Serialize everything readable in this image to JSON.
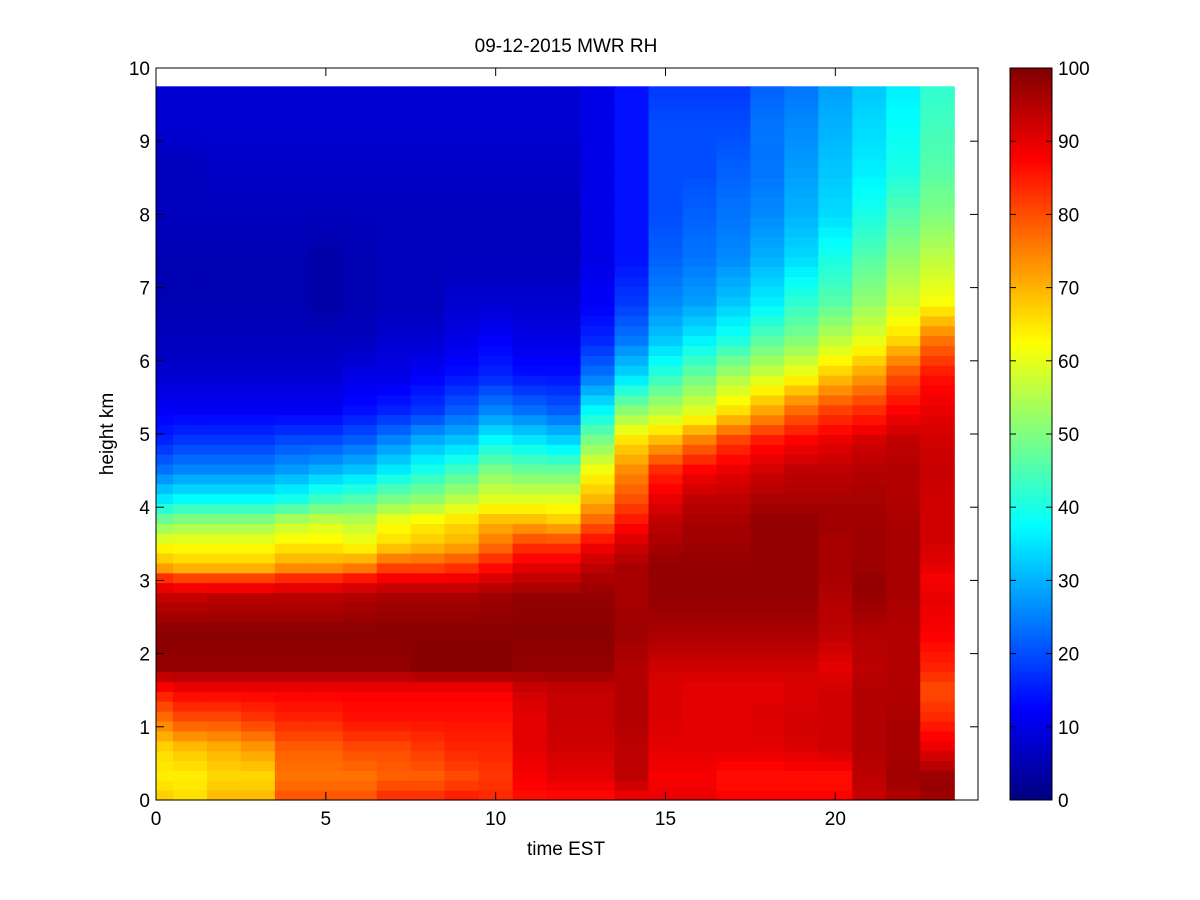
{
  "chart_data": {
    "type": "heatmap",
    "title": "09-12-2015 MWR RH",
    "xlabel": "time EST",
    "ylabel": "height km",
    "xlim": [
      0,
      24.2
    ],
    "ylim": [
      0,
      10
    ],
    "xticks": [
      0,
      5,
      10,
      15,
      20
    ],
    "yticks": [
      0,
      1,
      2,
      3,
      4,
      5,
      6,
      7,
      8,
      9,
      10
    ],
    "colorbar": {
      "colormap": "jet",
      "range": [
        0,
        100
      ],
      "ticks": [
        0,
        10,
        20,
        30,
        40,
        50,
        60,
        70,
        80,
        90,
        100
      ]
    },
    "x": [
      0,
      1,
      2,
      3,
      4,
      5,
      6,
      7,
      8,
      9,
      10,
      11,
      12,
      13,
      14,
      15,
      16,
      17,
      18,
      19,
      20,
      21,
      22,
      23
    ],
    "x_edges": [
      0,
      0.5,
      1.5,
      2.5,
      3.5,
      4.5,
      5.5,
      6.5,
      7.5,
      8.5,
      9.5,
      10.5,
      11.5,
      12.5,
      13.5,
      14.5,
      15.5,
      16.5,
      17.5,
      18.5,
      19.5,
      20.5,
      21.5,
      22.5,
      23.5
    ],
    "height_profiles": [
      {
        "h": 0.0,
        "rh": [
          68,
          66,
          70,
          70,
          80,
          80,
          80,
          84,
          84,
          86,
          84,
          86,
          86,
          86,
          88,
          90,
          90,
          88,
          88,
          88,
          88,
          93,
          95,
          97
        ]
      },
      {
        "h": 0.3,
        "rh": [
          64,
          64,
          66,
          66,
          76,
          76,
          76,
          78,
          78,
          80,
          82,
          88,
          90,
          90,
          94,
          88,
          88,
          86,
          86,
          86,
          86,
          94,
          97,
          98
        ]
      },
      {
        "h": 0.7,
        "rh": [
          66,
          68,
          70,
          72,
          78,
          78,
          80,
          80,
          82,
          84,
          84,
          90,
          92,
          92,
          94,
          90,
          90,
          90,
          90,
          91,
          92,
          95,
          96,
          90
        ]
      },
      {
        "h": 1.1,
        "rh": [
          76,
          80,
          80,
          82,
          84,
          84,
          86,
          86,
          86,
          86,
          86,
          90,
          93,
          93,
          95,
          91,
          90,
          90,
          91,
          92,
          92,
          95,
          96,
          84
        ]
      },
      {
        "h": 1.5,
        "rh": [
          86,
          88,
          88,
          88,
          88,
          88,
          88,
          88,
          88,
          88,
          88,
          92,
          93,
          93,
          95,
          91,
          90,
          90,
          90,
          91,
          92,
          95,
          95,
          80
        ]
      },
      {
        "h": 1.8,
        "rh": [
          98,
          98,
          98,
          98,
          98,
          98,
          98,
          98,
          99,
          99,
          99,
          98,
          98,
          98,
          95,
          92,
          92,
          92,
          92,
          92,
          90,
          94,
          95,
          84
        ]
      },
      {
        "h": 2.3,
        "rh": [
          99,
          99,
          99,
          99,
          99,
          99,
          99,
          99,
          99,
          99,
          99,
          99,
          99,
          99,
          97,
          96,
          96,
          96,
          96,
          96,
          94,
          95,
          95,
          88
        ]
      },
      {
        "h": 2.8,
        "rh": [
          93,
          93,
          94,
          94,
          94,
          94,
          95,
          96,
          96,
          96,
          97,
          98,
          98,
          98,
          96,
          98,
          98,
          98,
          98,
          98,
          95,
          98,
          96,
          90
        ]
      },
      {
        "h": 3.0,
        "rh": [
          86,
          84,
          84,
          84,
          86,
          86,
          88,
          90,
          90,
          90,
          92,
          94,
          94,
          96,
          96,
          98,
          98,
          98,
          98,
          98,
          96,
          98,
          96,
          88
        ]
      },
      {
        "h": 3.2,
        "rh": [
          70,
          68,
          68,
          68,
          72,
          72,
          74,
          80,
          80,
          82,
          86,
          90,
          90,
          94,
          96,
          98,
          98,
          98,
          98,
          98,
          96,
          97,
          96,
          90
        ]
      },
      {
        "h": 3.5,
        "rh": [
          62,
          62,
          62,
          62,
          64,
          64,
          62,
          66,
          68,
          70,
          76,
          82,
          82,
          88,
          92,
          96,
          97,
          97,
          98,
          98,
          96,
          97,
          96,
          92
        ]
      },
      {
        "h": 3.8,
        "rh": [
          50,
          52,
          52,
          52,
          56,
          58,
          56,
          62,
          64,
          66,
          70,
          70,
          68,
          78,
          86,
          94,
          96,
          96,
          98,
          98,
          97,
          97,
          96,
          92
        ]
      },
      {
        "h": 4.1,
        "rh": [
          36,
          38,
          38,
          38,
          40,
          44,
          46,
          50,
          52,
          56,
          60,
          60,
          60,
          70,
          80,
          90,
          94,
          94,
          96,
          96,
          96,
          96,
          95,
          92
        ]
      },
      {
        "h": 4.5,
        "rh": [
          24,
          26,
          26,
          26,
          28,
          30,
          32,
          36,
          40,
          44,
          50,
          48,
          48,
          62,
          74,
          84,
          88,
          90,
          92,
          94,
          94,
          95,
          95,
          93
        ]
      },
      {
        "h": 4.9,
        "rh": [
          16,
          18,
          18,
          18,
          20,
          20,
          22,
          26,
          30,
          32,
          38,
          36,
          34,
          50,
          66,
          70,
          76,
          82,
          86,
          88,
          90,
          92,
          94,
          92
        ]
      },
      {
        "h": 5.3,
        "rh": [
          12,
          12,
          12,
          12,
          12,
          12,
          14,
          16,
          18,
          22,
          26,
          24,
          22,
          38,
          52,
          56,
          60,
          66,
          72,
          78,
          82,
          84,
          88,
          90
        ]
      },
      {
        "h": 5.8,
        "rh": [
          8,
          8,
          8,
          8,
          8,
          8,
          10,
          10,
          12,
          14,
          16,
          14,
          14,
          24,
          34,
          42,
          48,
          54,
          58,
          62,
          68,
          72,
          80,
          86
        ]
      },
      {
        "h": 6.3,
        "rh": [
          6,
          6,
          6,
          6,
          6,
          6,
          6,
          8,
          8,
          10,
          12,
          10,
          10,
          16,
          24,
          32,
          36,
          40,
          46,
          50,
          56,
          60,
          66,
          76
        ]
      },
      {
        "h": 6.8,
        "rh": [
          5,
          5,
          5,
          5,
          5,
          4,
          5,
          6,
          6,
          8,
          8,
          8,
          8,
          12,
          18,
          26,
          28,
          32,
          36,
          42,
          46,
          52,
          58,
          62
        ]
      },
      {
        "h": 7.4,
        "rh": [
          5,
          5,
          5,
          5,
          5,
          4,
          5,
          6,
          6,
          6,
          6,
          6,
          6,
          10,
          14,
          22,
          24,
          26,
          30,
          34,
          40,
          46,
          52,
          56
        ]
      },
      {
        "h": 8.0,
        "rh": [
          6,
          6,
          6,
          6,
          6,
          6,
          6,
          6,
          6,
          6,
          6,
          6,
          6,
          10,
          14,
          20,
          22,
          24,
          26,
          30,
          34,
          40,
          46,
          50
        ]
      },
      {
        "h": 8.6,
        "rh": [
          6,
          6,
          7,
          7,
          7,
          7,
          7,
          7,
          7,
          7,
          7,
          7,
          7,
          10,
          14,
          20,
          20,
          22,
          24,
          28,
          32,
          36,
          40,
          46
        ]
      },
      {
        "h": 9.2,
        "rh": [
          8,
          8,
          8,
          8,
          8,
          8,
          8,
          8,
          8,
          8,
          8,
          8,
          8,
          10,
          14,
          20,
          20,
          20,
          24,
          26,
          30,
          34,
          38,
          44
        ]
      },
      {
        "h": 9.75,
        "rh": [
          8,
          8,
          8,
          8,
          8,
          8,
          8,
          8,
          8,
          8,
          8,
          8,
          8,
          10,
          14,
          18,
          18,
          18,
          22,
          24,
          28,
          32,
          36,
          42
        ]
      }
    ]
  }
}
